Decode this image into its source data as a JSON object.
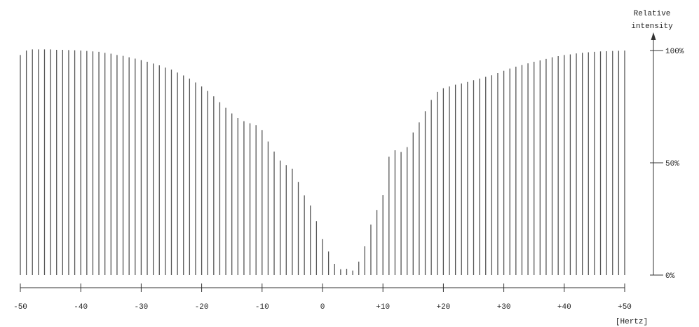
{
  "chart_data": {
    "type": "bar",
    "title": "",
    "xlabel": "[Hertz]",
    "ylabel": "Relative intensity",
    "ylabel_lines": [
      "Relative",
      "intensity"
    ],
    "xlim": [
      -50,
      50
    ],
    "ylim": [
      0,
      100
    ],
    "x_ticks": [
      {
        "value": -50,
        "label": "-50"
      },
      {
        "value": -40,
        "label": "-40"
      },
      {
        "value": -30,
        "label": "-30"
      },
      {
        "value": -20,
        "label": "-20"
      },
      {
        "value": -10,
        "label": "-10"
      },
      {
        "value": 0,
        "label": "0"
      },
      {
        "value": 10,
        "label": "+10"
      },
      {
        "value": 20,
        "label": "+20"
      },
      {
        "value": 30,
        "label": "+30"
      },
      {
        "value": 40,
        "label": "+40"
      },
      {
        "value": 50,
        "label": "+50"
      }
    ],
    "y_ticks": [
      {
        "value": 0,
        "label": "0%"
      },
      {
        "value": 50,
        "label": "50%"
      },
      {
        "value": 100,
        "label": "100%"
      }
    ],
    "grid": false,
    "x": [
      -50,
      -49,
      -48,
      -47,
      -46,
      -45,
      -44,
      -43,
      -42,
      -41,
      -40,
      -39,
      -38,
      -37,
      -36,
      -35,
      -34,
      -33,
      -32,
      -31,
      -30,
      -29,
      -28,
      -27,
      -26,
      -25,
      -24,
      -23,
      -22,
      -21,
      -20,
      -19,
      -18,
      -17,
      -16,
      -15,
      -14,
      -13,
      -12,
      -11,
      -10,
      -9,
      -8,
      -7,
      -6,
      -5,
      -4,
      -3,
      -2,
      -1,
      0,
      1,
      2,
      3,
      4,
      5,
      6,
      7,
      8,
      9,
      10,
      11,
      12,
      13,
      14,
      15,
      16,
      17,
      18,
      19,
      20,
      21,
      22,
      23,
      24,
      25,
      26,
      27,
      28,
      29,
      30,
      31,
      32,
      33,
      34,
      35,
      36,
      37,
      38,
      39,
      40,
      41,
      42,
      43,
      44,
      45,
      46,
      47,
      48,
      49,
      50
    ],
    "values": [
      98,
      100,
      100.5,
      100.5,
      100.5,
      100.5,
      100.3,
      100.3,
      100.2,
      100.1,
      100,
      99.8,
      99.6,
      99.4,
      99,
      98.6,
      98,
      97.6,
      97,
      96.4,
      95.7,
      95,
      94.2,
      93.4,
      92.4,
      91.5,
      90.2,
      88.9,
      87.5,
      85.8,
      84,
      82,
      79.6,
      77,
      74.5,
      72,
      70,
      68.5,
      67.6,
      66.8,
      64.6,
      59.5,
      55,
      51,
      49,
      47.3,
      41.5,
      35.5,
      31,
      24,
      16,
      10.5,
      5,
      2.6,
      2.8,
      2,
      6,
      12.8,
      22.5,
      29,
      35.6,
      52.7,
      55.6,
      54.8,
      57,
      63.5,
      68,
      73,
      78,
      81.6,
      83.2,
      84,
      84.8,
      85.3,
      86,
      86.8,
      87.5,
      88.3,
      89,
      90,
      91,
      92,
      92.8,
      93.5,
      94.3,
      95,
      95.6,
      96.3,
      97,
      97.5,
      98,
      98.3,
      98.7,
      99,
      99.2,
      99.4,
      99.6,
      99.7,
      99.8,
      99.9,
      100
    ]
  }
}
